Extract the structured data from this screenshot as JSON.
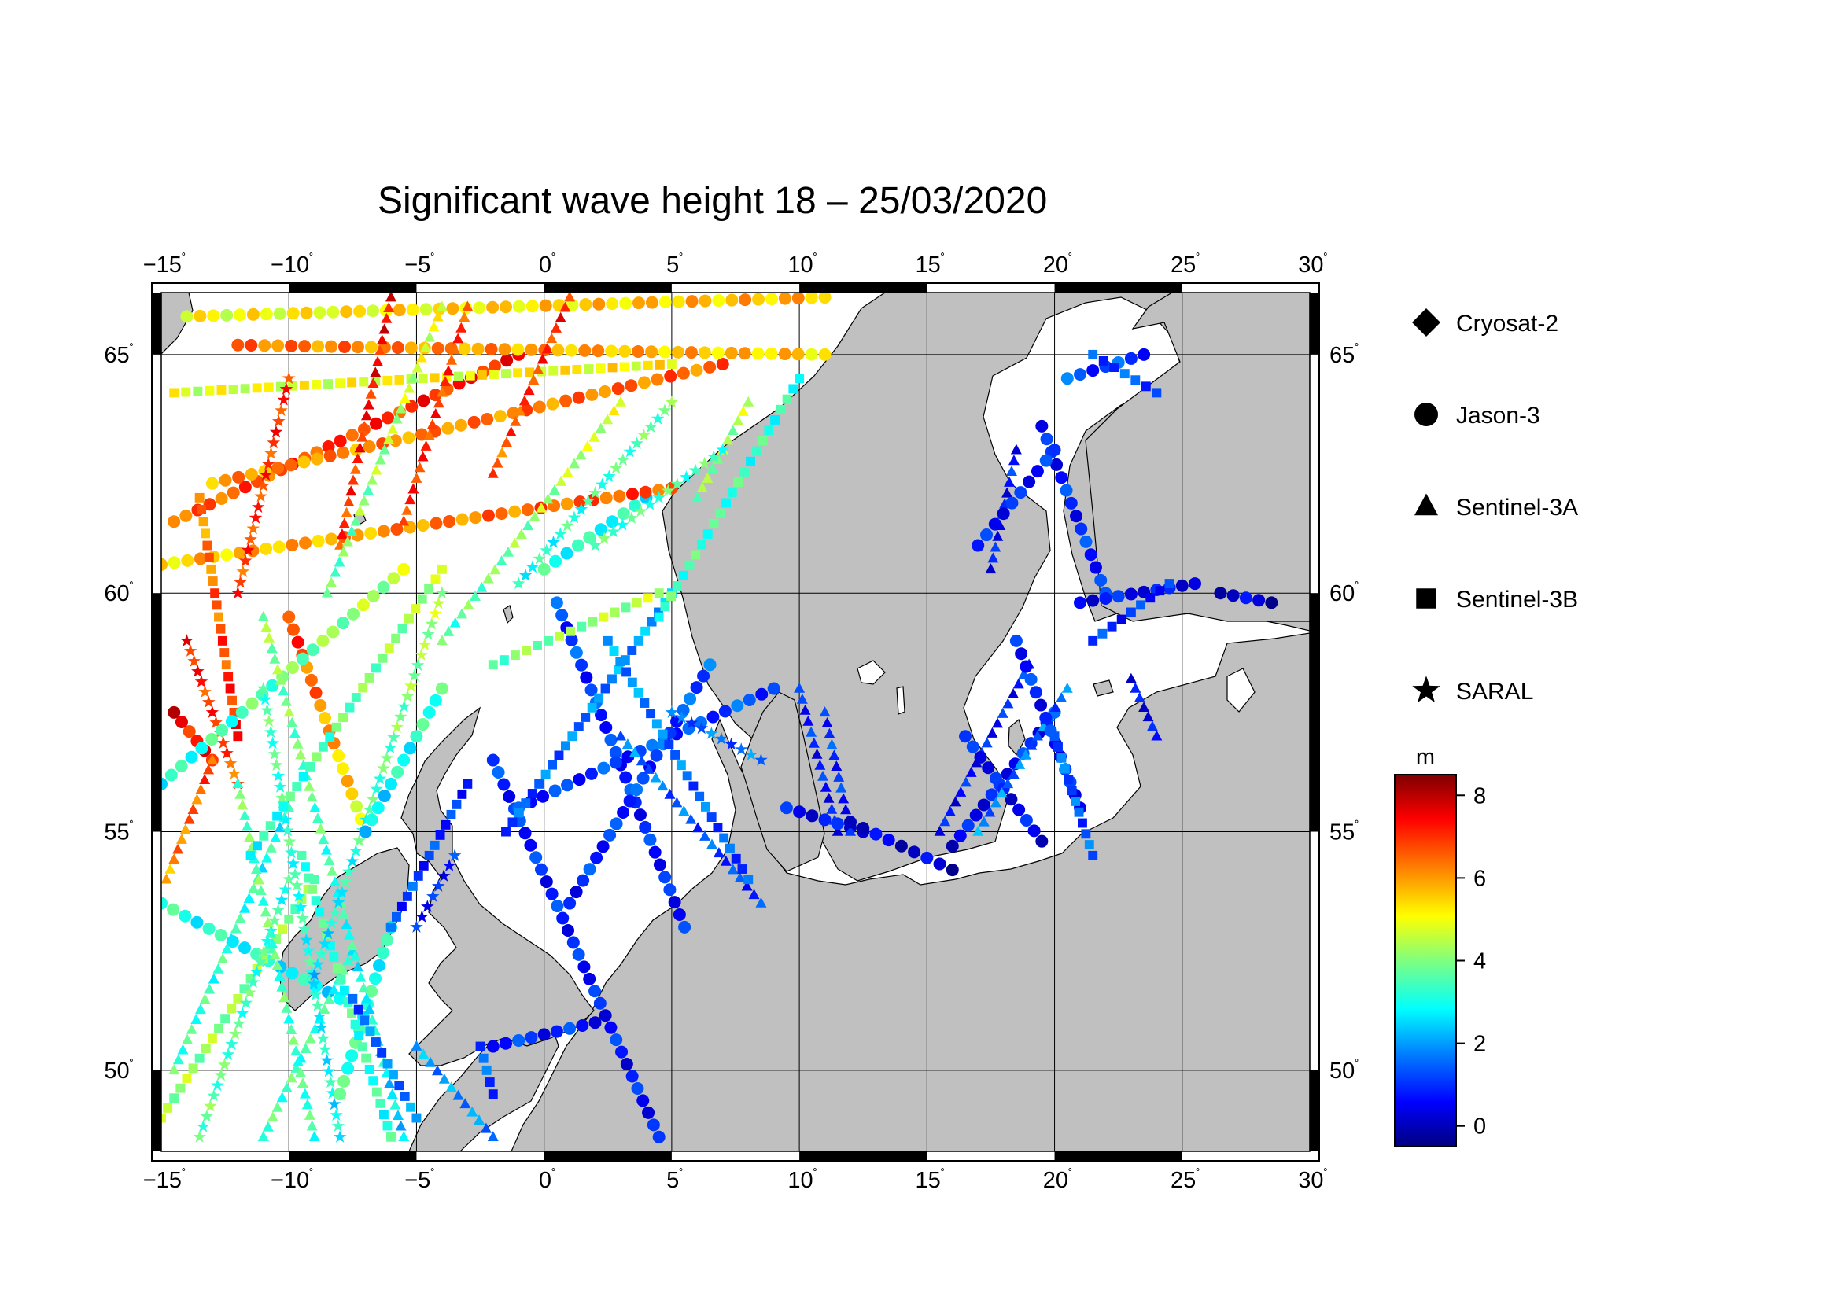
{
  "title": "Significant wave height 18 – 25/03/2020",
  "lon_ticks": [
    "−15",
    "−10",
    "−5",
    "0",
    "5",
    "10",
    "15",
    "20",
    "25",
    "30"
  ],
  "lat_ticks": [
    "50",
    "55",
    "60",
    "65"
  ],
  "degree_symbol": "˚",
  "map": {
    "lon_range": [
      -15,
      30
    ],
    "lat_range": [
      48.3,
      66.3
    ],
    "land_color": "#c0c0c0",
    "sea_color": "#ffffff",
    "grid": true
  },
  "legend": [
    {
      "label": "Cryosat-2",
      "symbol": "diamond"
    },
    {
      "label": "Jason-3",
      "symbol": "circle"
    },
    {
      "label": "Sentinel-3A",
      "symbol": "triangle"
    },
    {
      "label": "Sentinel-3B",
      "symbol": "square"
    },
    {
      "label": "SARAL",
      "symbol": "star"
    }
  ],
  "colorbar": {
    "unit": "m",
    "ticks": [
      "8",
      "6",
      "4",
      "2",
      "0"
    ],
    "tick_values": [
      8,
      6,
      4,
      2,
      0
    ],
    "range": [
      -0.5,
      8.5
    ],
    "colors": [
      "#00007f",
      "#0000ff",
      "#007fff",
      "#00ffff",
      "#7fff7f",
      "#ffff00",
      "#ff7f00",
      "#ff0000",
      "#7f0000"
    ]
  },
  "chart_data": {
    "type": "scatter",
    "x_axis": "longitude",
    "y_axis": "latitude",
    "value": "significant wave height (m)",
    "tracks": [
      {
        "satellite": "Jason-3",
        "start": [
          -2.0,
          56.5
        ],
        "end": [
          4.5,
          48.6
        ],
        "hs": [
          1.0,
          0.7
        ]
      },
      {
        "satellite": "Jason-3",
        "start": [
          0.5,
          59.8
        ],
        "end": [
          5.5,
          53.0
        ],
        "hs": [
          1.2,
          0.8
        ]
      },
      {
        "satellite": "Jason-3",
        "start": [
          -1.0,
          55.5
        ],
        "end": [
          9.0,
          58.0
        ],
        "hs": [
          1.0,
          1.3
        ]
      },
      {
        "satellite": "Jason-3",
        "start": [
          1.0,
          53.5
        ],
        "end": [
          6.5,
          58.5
        ],
        "hs": [
          0.9,
          1.4
        ]
      },
      {
        "satellite": "Sentinel-3B",
        "start": [
          -1.5,
          55.0
        ],
        "end": [
          5.0,
          60.0
        ],
        "hs": [
          1.3,
          2.2
        ]
      },
      {
        "satellite": "Sentinel-3A",
        "start": [
          3.0,
          57.0
        ],
        "end": [
          8.5,
          53.5
        ],
        "hs": [
          1.8,
          1.0
        ]
      },
      {
        "satellite": "Sentinel-3B",
        "start": [
          2.5,
          59.0
        ],
        "end": [
          8.0,
          54.0
        ],
        "hs": [
          2.0,
          1.2
        ]
      },
      {
        "satellite": "SARAL",
        "start": [
          5.0,
          57.5
        ],
        "end": [
          8.5,
          56.5
        ],
        "hs": [
          1.5,
          1.6
        ]
      },
      {
        "satellite": "Jason-3",
        "start": [
          0.0,
          60.5
        ],
        "end": [
          4.0,
          62.0
        ],
        "hs": [
          3.2,
          3.0
        ]
      },
      {
        "satellite": "Jason-3",
        "start": [
          -15.0,
          60.6
        ],
        "end": [
          5.0,
          62.2
        ],
        "hs": [
          5.5,
          6.8
        ]
      },
      {
        "satellite": "Jason-3",
        "start": [
          -14.5,
          61.5
        ],
        "end": [
          -1.0,
          65.0
        ],
        "hs": [
          6.5,
          7.2
        ]
      },
      {
        "satellite": "Jason-3",
        "start": [
          -13.0,
          62.3
        ],
        "end": [
          7.0,
          64.8
        ],
        "hs": [
          6.0,
          6.5
        ]
      },
      {
        "satellite": "Jason-3",
        "start": [
          -14.0,
          65.8
        ],
        "end": [
          11.0,
          66.2
        ],
        "hs": [
          5.0,
          5.8
        ]
      },
      {
        "satellite": "Jason-3",
        "start": [
          -12.0,
          65.2
        ],
        "end": [
          11.0,
          65.0
        ],
        "hs": [
          6.4,
          5.5
        ]
      },
      {
        "satellite": "Sentinel-3B",
        "start": [
          -14.5,
          64.2
        ],
        "end": [
          5.0,
          64.8
        ],
        "hs": [
          4.8,
          5.2
        ]
      },
      {
        "satellite": "Sentinel-3A",
        "start": [
          -6.0,
          66.2
        ],
        "end": [
          -8.0,
          61.0
        ],
        "hs": [
          7.5,
          6.8
        ]
      },
      {
        "satellite": "Sentinel-3A",
        "start": [
          -3.0,
          66.0
        ],
        "end": [
          -5.5,
          61.5
        ],
        "hs": [
          6.8,
          7.0
        ]
      },
      {
        "satellite": "Sentinel-3A",
        "start": [
          1.0,
          66.2
        ],
        "end": [
          -2.0,
          62.5
        ],
        "hs": [
          7.2,
          6.5
        ]
      },
      {
        "satellite": "SARAL",
        "start": [
          -10.0,
          64.5
        ],
        "end": [
          -12.0,
          60.0
        ],
        "hs": [
          7.0,
          6.8
        ]
      },
      {
        "satellite": "Sentinel-3B",
        "start": [
          -13.5,
          62.0
        ],
        "end": [
          -12.0,
          57.0
        ],
        "hs": [
          6.0,
          7.2
        ]
      },
      {
        "satellite": "Jason-3",
        "start": [
          -14.5,
          57.5
        ],
        "end": [
          -13.0,
          56.5
        ],
        "hs": [
          7.5,
          7.0
        ]
      },
      {
        "satellite": "SARAL",
        "start": [
          -14.0,
          59.0
        ],
        "end": [
          -12.0,
          56.0
        ],
        "hs": [
          7.2,
          6.5
        ]
      },
      {
        "satellite": "Sentinel-3A",
        "start": [
          -14.8,
          54.0
        ],
        "end": [
          -13.0,
          56.5
        ],
        "hs": [
          6.0,
          6.8
        ]
      },
      {
        "satellite": "Jason-3",
        "start": [
          -10.0,
          59.5
        ],
        "end": [
          -7.0,
          55.0
        ],
        "hs": [
          7.0,
          5.0
        ]
      },
      {
        "satellite": "Jason-3",
        "start": [
          -15.0,
          56.0
        ],
        "end": [
          -5.5,
          60.5
        ],
        "hs": [
          3.0,
          4.5
        ]
      },
      {
        "satellite": "Jason-3",
        "start": [
          -15.0,
          53.5
        ],
        "end": [
          -8.0,
          51.5
        ],
        "hs": [
          3.2,
          2.8
        ]
      },
      {
        "satellite": "Sentinel-3B",
        "start": [
          -15.0,
          49.0
        ],
        "end": [
          -9.0,
          54.0
        ],
        "hs": [
          4.3,
          4.0
        ]
      },
      {
        "satellite": "Sentinel-3A",
        "start": [
          -14.5,
          50.0
        ],
        "end": [
          -10.0,
          55.5
        ],
        "hs": [
          3.5,
          3.0
        ]
      },
      {
        "satellite": "SARAL",
        "start": [
          -13.5,
          48.6
        ],
        "end": [
          -10.0,
          54.0
        ],
        "hs": [
          3.8,
          3.2
        ]
      },
      {
        "satellite": "Sentinel-3A",
        "start": [
          -11.0,
          48.6
        ],
        "end": [
          -7.5,
          52.5
        ],
        "hs": [
          3.6,
          3.2
        ]
      },
      {
        "satellite": "Sentinel-3A",
        "start": [
          -9.0,
          48.6
        ],
        "end": [
          -12.0,
          56.0
        ],
        "hs": [
          3.4,
          3.8
        ]
      },
      {
        "satellite": "SARAL",
        "start": [
          -8.0,
          48.6
        ],
        "end": [
          -11.0,
          58.0
        ],
        "hs": [
          2.8,
          3.6
        ]
      },
      {
        "satellite": "Jason-3",
        "start": [
          -8.0,
          49.5
        ],
        "end": [
          -6.0,
          53.0
        ],
        "hs": [
          3.5,
          3.0
        ]
      },
      {
        "satellite": "Sentinel-3B",
        "start": [
          -6.0,
          48.6
        ],
        "end": [
          -9.5,
          54.5
        ],
        "hs": [
          3.2,
          3.5
        ]
      },
      {
        "satellite": "Sentinel-3A",
        "start": [
          -5.5,
          48.6
        ],
        "end": [
          -11.0,
          59.5
        ],
        "hs": [
          2.5,
          4.2
        ]
      },
      {
        "satellite": "Sentinel-3B",
        "start": [
          -11.5,
          54.5
        ],
        "end": [
          -4.0,
          60.5
        ],
        "hs": [
          3.0,
          4.5
        ]
      },
      {
        "satellite": "SARAL",
        "start": [
          -9.0,
          52.0
        ],
        "end": [
          -4.0,
          60.0
        ],
        "hs": [
          2.6,
          4.5
        ]
      },
      {
        "satellite": "Jason-3",
        "start": [
          -7.0,
          55.0
        ],
        "end": [
          -4.0,
          58.0
        ],
        "hs": [
          2.5,
          3.5
        ]
      },
      {
        "satellite": "Sentinel-3A",
        "start": [
          -8.5,
          60.0
        ],
        "end": [
          -4.0,
          66.0
        ],
        "hs": [
          3.6,
          5.0
        ]
      },
      {
        "satellite": "Sentinel-3A",
        "start": [
          -4.0,
          59.0
        ],
        "end": [
          3.0,
          64.0
        ],
        "hs": [
          3.5,
          4.8
        ]
      },
      {
        "satellite": "SARAL",
        "start": [
          -1.0,
          60.2
        ],
        "end": [
          5.0,
          64.0
        ],
        "hs": [
          3.0,
          3.8
        ]
      },
      {
        "satellite": "Sentinel-3B",
        "start": [
          -2.0,
          58.5
        ],
        "end": [
          4.5,
          60.0
        ],
        "hs": [
          3.8,
          4.5
        ]
      },
      {
        "satellite": "Sentinel-3B",
        "start": [
          4.5,
          59.5
        ],
        "end": [
          10.0,
          64.5
        ],
        "hs": [
          3.5,
          3.2
        ]
      },
      {
        "satellite": "Sentinel-3A",
        "start": [
          6.0,
          62.0
        ],
        "end": [
          8.0,
          64.0
        ],
        "hs": [
          4.0,
          4.5
        ]
      },
      {
        "satellite": "SARAL",
        "start": [
          2.0,
          61.0
        ],
        "end": [
          7.0,
          63.0
        ],
        "hs": [
          3.5,
          3.5
        ]
      },
      {
        "satellite": "Sentinel-3B",
        "start": [
          -6.0,
          53.0
        ],
        "end": [
          -3.0,
          56.0
        ],
        "hs": [
          1.2,
          1.0
        ]
      },
      {
        "satellite": "SARAL",
        "start": [
          -5.0,
          53.0
        ],
        "end": [
          -3.5,
          54.5
        ],
        "hs": [
          0.8,
          0.9
        ]
      },
      {
        "satellite": "Sentinel-3B",
        "start": [
          -7.5,
          51.5
        ],
        "end": [
          -5.0,
          49.0
        ],
        "hs": [
          1.5,
          1.8
        ]
      },
      {
        "satellite": "Jason-3",
        "start": [
          -2.0,
          50.5
        ],
        "end": [
          2.0,
          51.0
        ],
        "hs": [
          1.0,
          0.8
        ]
      },
      {
        "satellite": "Sentinel-3B",
        "start": [
          -2.5,
          50.5
        ],
        "end": [
          -2.0,
          49.5
        ],
        "hs": [
          1.5,
          1.2
        ]
      },
      {
        "satellite": "Sentinel-3A",
        "start": [
          -5.0,
          50.5
        ],
        "end": [
          -2.0,
          48.6
        ],
        "hs": [
          2.0,
          1.8
        ]
      },
      {
        "satellite": "Sentinel-3A",
        "start": [
          10.0,
          58.0
        ],
        "end": [
          11.5,
          55.0
        ],
        "hs": [
          0.9,
          0.7
        ]
      },
      {
        "satellite": "Jason-3",
        "start": [
          9.5,
          55.5
        ],
        "end": [
          12.5,
          55.0
        ],
        "hs": [
          0.6,
          0.6
        ]
      },
      {
        "satellite": "Sentinel-3A",
        "start": [
          11.0,
          57.5
        ],
        "end": [
          12.0,
          55.0
        ],
        "hs": [
          1.1,
          0.8
        ]
      },
      {
        "satellite": "Jason-3",
        "start": [
          12.0,
          55.2
        ],
        "end": [
          16.0,
          54.2
        ],
        "hs": [
          0.4,
          0.2
        ]
      },
      {
        "satellite": "Jason-3",
        "start": [
          16.0,
          54.7
        ],
        "end": [
          20.0,
          57.5
        ],
        "hs": [
          0.5,
          1.0
        ]
      },
      {
        "satellite": "Sentinel-3A",
        "start": [
          15.5,
          55.0
        ],
        "end": [
          19.0,
          58.5
        ],
        "hs": [
          0.6,
          0.9
        ]
      },
      {
        "satellite": "Jason-3",
        "start": [
          16.5,
          57.0
        ],
        "end": [
          19.5,
          54.8
        ],
        "hs": [
          0.8,
          0.5
        ]
      },
      {
        "satellite": "Sentinel-3A",
        "start": [
          17.0,
          55.0
        ],
        "end": [
          20.5,
          58.0
        ],
        "hs": [
          1.8,
          1.5
        ]
      },
      {
        "satellite": "Jason-3",
        "start": [
          18.5,
          59.0
        ],
        "end": [
          21.0,
          55.5
        ],
        "hs": [
          0.9,
          0.8
        ]
      },
      {
        "satellite": "Sentinel-3B",
        "start": [
          20.0,
          57.0
        ],
        "end": [
          21.5,
          54.5
        ],
        "hs": [
          1.6,
          1.3
        ]
      },
      {
        "satellite": "Sentinel-3A",
        "start": [
          18.5,
          63.0
        ],
        "end": [
          17.5,
          60.5
        ],
        "hs": [
          0.8,
          0.7
        ]
      },
      {
        "satellite": "Jason-3",
        "start": [
          19.5,
          63.5
        ],
        "end": [
          22.0,
          60.0
        ],
        "hs": [
          0.8,
          1.0
        ]
      },
      {
        "satellite": "Jason-3",
        "start": [
          17.0,
          61.0
        ],
        "end": [
          20.0,
          63.0
        ],
        "hs": [
          0.7,
          0.9
        ]
      },
      {
        "satellite": "Jason-3",
        "start": [
          20.5,
          64.5
        ],
        "end": [
          23.5,
          65.0
        ],
        "hs": [
          1.3,
          1.1
        ]
      },
      {
        "satellite": "Sentinel-3B",
        "start": [
          21.5,
          65.0
        ],
        "end": [
          24.0,
          64.2
        ],
        "hs": [
          1.2,
          1.4
        ]
      },
      {
        "satellite": "Jason-3",
        "start": [
          21.0,
          59.8
        ],
        "end": [
          25.5,
          60.2
        ],
        "hs": [
          0.7,
          0.6
        ]
      },
      {
        "satellite": "Jason-3",
        "start": [
          26.5,
          60.0
        ],
        "end": [
          28.5,
          59.8
        ],
        "hs": [
          0.3,
          0.2
        ]
      },
      {
        "satellite": "Sentinel-3A",
        "start": [
          23.0,
          58.2
        ],
        "end": [
          24.0,
          57.0
        ],
        "hs": [
          0.6,
          0.5
        ]
      },
      {
        "satellite": "Sentinel-3B",
        "start": [
          21.5,
          59.0
        ],
        "end": [
          24.5,
          60.2
        ],
        "hs": [
          1.0,
          0.9
        ]
      }
    ]
  }
}
